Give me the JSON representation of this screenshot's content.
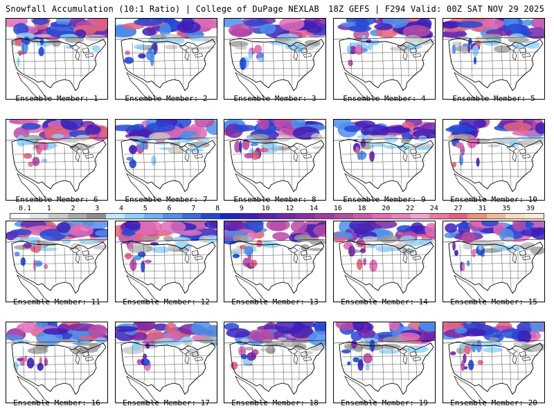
{
  "header": {
    "left_title": "Snowfall Accumulation (10:1 Ratio) | College of DuPage NEXLAB",
    "right_title": "18Z GEFS | F294 Valid: 00Z SAT NOV 29 2025"
  },
  "colorbar": {
    "labels": [
      "0.1",
      "1",
      "2",
      "3",
      "4",
      "5",
      "6",
      "7",
      "8",
      "9",
      "10",
      "12",
      "14",
      "16",
      "18",
      "20",
      "22",
      "24",
      "27",
      "31",
      "35",
      "39"
    ],
    "colors": [
      "#ffffff",
      "#e6e6e6",
      "#c8c8c8",
      "#a8a8a8",
      "#8c8c8c",
      "#bfe8ff",
      "#8fd0f8",
      "#6fb1f2",
      "#4f8ee9",
      "#3a6ce0",
      "#2348d6",
      "#1a26c8",
      "#3d1fb8",
      "#5a21b0",
      "#7327a8",
      "#8a2fa3",
      "#a13ba0",
      "#b84aa6",
      "#cc59ad",
      "#de6bb6",
      "#ea7ec0",
      "#f0a2cf",
      "#eb7a9a",
      "#e2617d",
      "#e88f7e",
      "#f1b79b",
      "#f7dac0",
      "#fde9d8"
    ]
  },
  "members": [
    {
      "label": "Ensemble Member: 1"
    },
    {
      "label": "Ensemble Member: 2"
    },
    {
      "label": "Ensemble Member: 3"
    },
    {
      "label": "Ensemble Member: 4"
    },
    {
      "label": "Ensemble Member: 5"
    },
    {
      "label": "Ensemble Member: 6"
    },
    {
      "label": "Ensemble Member: 7"
    },
    {
      "label": "Ensemble Member: 8"
    },
    {
      "label": "Ensemble Member: 9"
    },
    {
      "label": "Ensemble Member: 10"
    },
    {
      "label": "Ensemble Member: 11"
    },
    {
      "label": "Ensemble Member: 12"
    },
    {
      "label": "Ensemble Member: 13"
    },
    {
      "label": "Ensemble Member: 14"
    },
    {
      "label": "Ensemble Member: 15"
    },
    {
      "label": "Ensemble Member: 16"
    },
    {
      "label": "Ensemble Member: 17"
    },
    {
      "label": "Ensemble Member: 18"
    },
    {
      "label": "Ensemble Member: 19"
    },
    {
      "label": "Ensemble Member: 20"
    }
  ]
}
